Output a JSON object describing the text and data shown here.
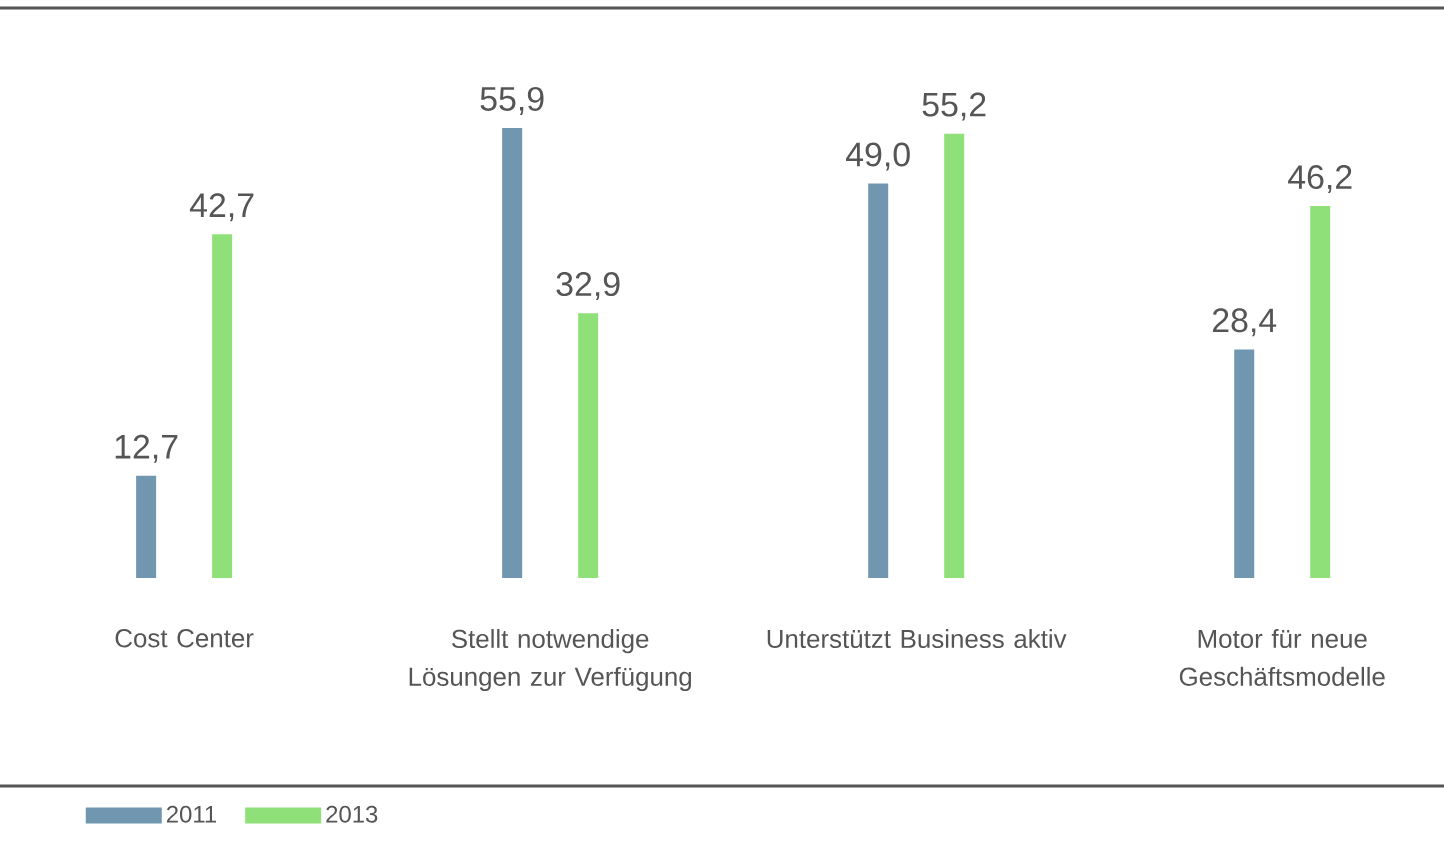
{
  "chart_data": {
    "type": "bar",
    "categories": [
      "Cost Center",
      "Stellt notwendige Lösungen zur Verfügung",
      "Unterstützt Business aktiv",
      "Motor für neue Geschäftsmodelle"
    ],
    "series": [
      {
        "name": "2011",
        "color": "#7096b0",
        "values": [
          12.7,
          55.9,
          49.0,
          28.4
        ],
        "value_labels": [
          "12,7",
          "55,9",
          "49,0",
          "28,4"
        ]
      },
      {
        "name": "2013",
        "color": "#90e07a",
        "values": [
          42.7,
          32.9,
          55.2,
          46.2
        ],
        "value_labels": [
          "42,7",
          "32,9",
          "55,2",
          "46,2"
        ]
      }
    ],
    "legend": "bottom left"
  }
}
